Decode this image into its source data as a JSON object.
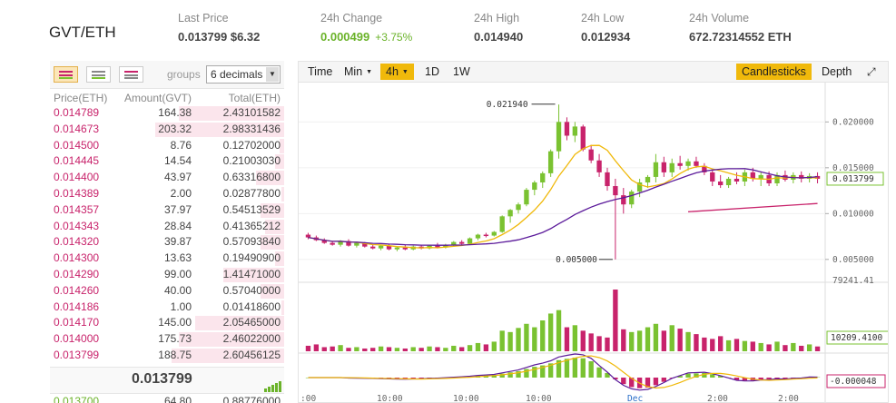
{
  "header": {
    "pair": "GVT/ETH",
    "stats": [
      {
        "label": "Last Price",
        "value": "0.013799 $6.32"
      },
      {
        "label": "24h Change",
        "value": "0.000499",
        "extra": "+3.75%"
      },
      {
        "label": "24h High",
        "value": "0.014940"
      },
      {
        "label": "24h Low",
        "value": "0.012934"
      },
      {
        "label": "24h Volume",
        "value": "672.72314552 ETH"
      }
    ]
  },
  "orderbook": {
    "view_icons": [
      "orderbook-both-icon",
      "orderbook-bids-icon",
      "orderbook-asks-icon"
    ],
    "groups_label": "groups",
    "groups_value": "6 decimals",
    "columns": [
      "Price(ETH)",
      "Amount(GVT)",
      "Total(ETH)"
    ],
    "asks": [
      {
        "price": "0.014789",
        "amount": "164.38",
        "total": "2.43101582",
        "depth": 0.45
      },
      {
        "price": "0.014673",
        "amount": "203.32",
        "total": "2.98331436",
        "depth": 0.55
      },
      {
        "price": "0.014500",
        "amount": "8.76",
        "total": "0.12702000",
        "depth": 0.02
      },
      {
        "price": "0.014445",
        "amount": "14.54",
        "total": "0.21003030",
        "depth": 0.04
      },
      {
        "price": "0.014400",
        "amount": "43.97",
        "total": "0.63316800",
        "depth": 0.12
      },
      {
        "price": "0.014389",
        "amount": "2.00",
        "total": "0.02877800",
        "depth": 0.01
      },
      {
        "price": "0.014357",
        "amount": "37.97",
        "total": "0.54513529",
        "depth": 0.1
      },
      {
        "price": "0.014343",
        "amount": "28.84",
        "total": "0.41365212",
        "depth": 0.08
      },
      {
        "price": "0.014320",
        "amount": "39.87",
        "total": "0.57093840",
        "depth": 0.1
      },
      {
        "price": "0.014300",
        "amount": "13.63",
        "total": "0.19490900",
        "depth": 0.04
      },
      {
        "price": "0.014290",
        "amount": "99.00",
        "total": "1.41471000",
        "depth": 0.26
      },
      {
        "price": "0.014260",
        "amount": "40.00",
        "total": "0.57040000",
        "depth": 0.1
      },
      {
        "price": "0.014186",
        "amount": "1.00",
        "total": "0.01418600",
        "depth": 0.01
      },
      {
        "price": "0.014170",
        "amount": "145.00",
        "total": "2.05465000",
        "depth": 0.38
      },
      {
        "price": "0.014000",
        "amount": "175.73",
        "total": "2.46022000",
        "depth": 0.45
      },
      {
        "price": "0.013799",
        "amount": "188.75",
        "total": "2.60456125",
        "depth": 0.48
      }
    ],
    "last_price": "0.013799",
    "bids": [
      {
        "price": "0.013700",
        "amount": "64.80",
        "total": "0.88776000"
      }
    ]
  },
  "chart": {
    "toolbar": {
      "time": "Time",
      "min": "Min",
      "interval": "4h",
      "d1": "1D",
      "w1": "1W",
      "candles": "Candlesticks",
      "depth": "Depth"
    },
    "price_axis": [
      "0.020000",
      "0.015000",
      "0.010000",
      "0.005000"
    ],
    "price_tag": "0.013799",
    "high_label": "0.021940",
    "low_label": "0.005000",
    "vol_axis_top": "79241.41",
    "vol_tag": "10209.4100",
    "macd_tag": "-0.000048",
    "x_labels": [
      ":00",
      "10:00",
      "10:00",
      "10:00",
      "Dec",
      "2:00",
      "2:00"
    ],
    "colors": {
      "up": "#7ac231",
      "down": "#c8236b",
      "ma_fast": "#f0b90b",
      "ma_slow": "#5b1a9a",
      "accent": "#f0b90b"
    }
  },
  "chart_data": {
    "type": "candlestick",
    "ylim": [
      0.003,
      0.0235
    ],
    "candles": [
      [
        0.0077,
        0.0079,
        0.0072,
        0.0074
      ],
      [
        0.0074,
        0.0076,
        0.007,
        0.0071
      ],
      [
        0.0071,
        0.0073,
        0.0067,
        0.0068
      ],
      [
        0.0068,
        0.007,
        0.0065,
        0.0066
      ],
      [
        0.0066,
        0.0071,
        0.0064,
        0.007
      ],
      [
        0.007,
        0.0072,
        0.0064,
        0.0065
      ],
      [
        0.0065,
        0.0069,
        0.0063,
        0.0068
      ],
      [
        0.0068,
        0.0069,
        0.0063,
        0.0064
      ],
      [
        0.0064,
        0.0066,
        0.0061,
        0.0062
      ],
      [
        0.0062,
        0.0066,
        0.006,
        0.0065
      ],
      [
        0.0065,
        0.0067,
        0.006,
        0.0061
      ],
      [
        0.0061,
        0.0064,
        0.0059,
        0.0063
      ],
      [
        0.0063,
        0.0066,
        0.006,
        0.0061
      ],
      [
        0.0061,
        0.0065,
        0.006,
        0.0064
      ],
      [
        0.0064,
        0.0066,
        0.0061,
        0.0062
      ],
      [
        0.0062,
        0.0066,
        0.0061,
        0.0065
      ],
      [
        0.0065,
        0.0068,
        0.0062,
        0.0063
      ],
      [
        0.0063,
        0.0067,
        0.0062,
        0.0066
      ],
      [
        0.0066,
        0.007,
        0.0064,
        0.0069
      ],
      [
        0.0069,
        0.0071,
        0.0065,
        0.0067
      ],
      [
        0.0067,
        0.0074,
        0.0066,
        0.0073
      ],
      [
        0.0073,
        0.0078,
        0.0071,
        0.0077
      ],
      [
        0.0077,
        0.0079,
        0.0074,
        0.0076
      ],
      [
        0.0076,
        0.0081,
        0.0075,
        0.008
      ],
      [
        0.008,
        0.0098,
        0.0079,
        0.0097
      ],
      [
        0.0097,
        0.0105,
        0.009,
        0.0104
      ],
      [
        0.0104,
        0.0112,
        0.01,
        0.011
      ],
      [
        0.011,
        0.0128,
        0.0108,
        0.0126
      ],
      [
        0.0126,
        0.0136,
        0.012,
        0.0134
      ],
      [
        0.0134,
        0.0146,
        0.0128,
        0.0144
      ],
      [
        0.0144,
        0.017,
        0.014,
        0.0168
      ],
      [
        0.0168,
        0.0219,
        0.016,
        0.02
      ],
      [
        0.02,
        0.0205,
        0.018,
        0.0185
      ],
      [
        0.0185,
        0.02,
        0.0178,
        0.0195
      ],
      [
        0.0195,
        0.0197,
        0.0168,
        0.017
      ],
      [
        0.017,
        0.0175,
        0.0155,
        0.0158
      ],
      [
        0.0158,
        0.0165,
        0.014,
        0.0145
      ],
      [
        0.0145,
        0.015,
        0.0125,
        0.013
      ],
      [
        0.013,
        0.0138,
        0.005,
        0.012
      ],
      [
        0.012,
        0.0128,
        0.01,
        0.011
      ],
      [
        0.011,
        0.0126,
        0.0106,
        0.0124
      ],
      [
        0.0124,
        0.0138,
        0.0118,
        0.0134
      ],
      [
        0.0134,
        0.0142,
        0.0128,
        0.014
      ],
      [
        0.014,
        0.0165,
        0.0134,
        0.0156
      ],
      [
        0.0156,
        0.0162,
        0.014,
        0.0145
      ],
      [
        0.0145,
        0.016,
        0.014,
        0.0155
      ],
      [
        0.0155,
        0.0163,
        0.0148,
        0.0152
      ],
      [
        0.0152,
        0.016,
        0.0147,
        0.0157
      ],
      [
        0.0157,
        0.0162,
        0.015,
        0.0152
      ],
      [
        0.0152,
        0.0155,
        0.0142,
        0.0145
      ],
      [
        0.0145,
        0.0148,
        0.013,
        0.0135
      ],
      [
        0.0135,
        0.0142,
        0.0128,
        0.0131
      ],
      [
        0.0131,
        0.014,
        0.0128,
        0.0138
      ],
      [
        0.0138,
        0.0145,
        0.0132,
        0.0135
      ],
      [
        0.0135,
        0.0148,
        0.013,
        0.0145
      ],
      [
        0.0145,
        0.015,
        0.0135,
        0.0138
      ],
      [
        0.0138,
        0.0145,
        0.013,
        0.0142
      ],
      [
        0.0142,
        0.0146,
        0.013,
        0.0133
      ],
      [
        0.0133,
        0.0145,
        0.013,
        0.0142
      ],
      [
        0.0142,
        0.0147,
        0.0135,
        0.0137
      ],
      [
        0.0137,
        0.0145,
        0.0133,
        0.0142
      ],
      [
        0.0142,
        0.0146,
        0.0134,
        0.0138
      ],
      [
        0.0138,
        0.0144,
        0.0134,
        0.0141
      ],
      [
        0.0141,
        0.0145,
        0.0133,
        0.0138
      ]
    ],
    "volumes": [
      8,
      10,
      6,
      7,
      9,
      5,
      6,
      4,
      5,
      7,
      6,
      5,
      4,
      6,
      5,
      7,
      6,
      5,
      8,
      6,
      9,
      12,
      10,
      14,
      30,
      28,
      34,
      40,
      35,
      45,
      55,
      60,
      35,
      38,
      30,
      26,
      22,
      20,
      90,
      32,
      28,
      30,
      35,
      40,
      30,
      38,
      33,
      28,
      25,
      20,
      18,
      22,
      16,
      18,
      15,
      14,
      12,
      10,
      14,
      9,
      12,
      8,
      10,
      7
    ],
    "volume_max": 79241.41
  }
}
